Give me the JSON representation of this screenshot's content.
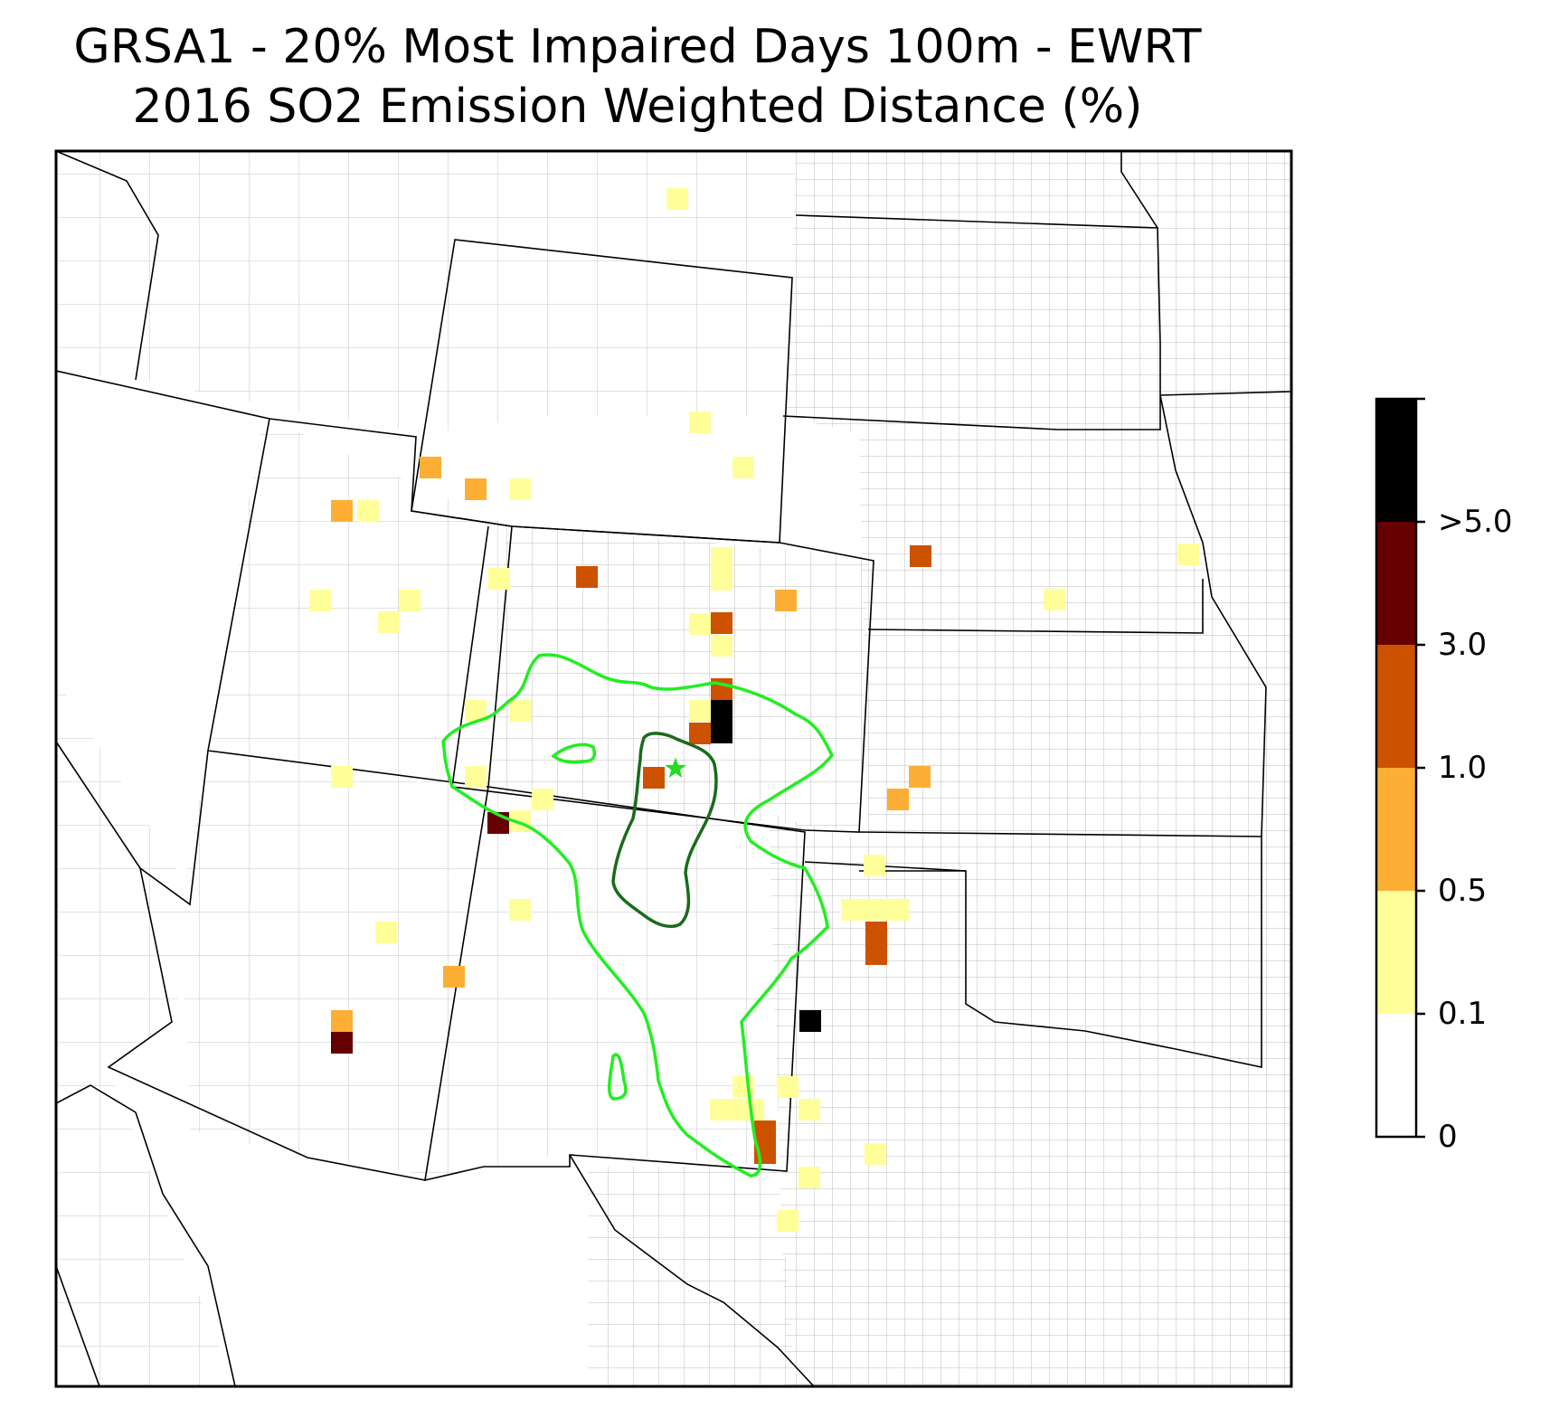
{
  "title_line1": "GRSA1 - 20% Most Impaired Days 100m - EWRT",
  "title_line2": "2016 SO2 Emission Weighted Distance (%)",
  "colorbar": {
    "labels": [
      "0",
      "0.1",
      "0.5",
      "1.0",
      "3.0",
      ">5.0"
    ],
    "colors": [
      "#ffffff",
      "#ffff99",
      "#fdae35",
      "#cc5200",
      "#660000",
      "#000000"
    ]
  },
  "legend_bins": {
    "white": "0-0.1",
    "light_yellow": "0.1-0.5",
    "orange": "0.5-1.0",
    "dark_orange": "1.0-3.0",
    "dark_red": "3.0-5.0",
    "black": ">5.0"
  },
  "receptor": {
    "marker": "star-icon",
    "color": "#22dd22"
  },
  "contours": {
    "outer_color": "#22ee22",
    "inner_color": "#1a6b1a"
  }
}
